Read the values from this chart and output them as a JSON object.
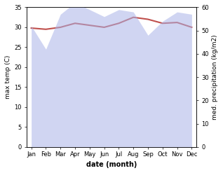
{
  "months": [
    "Jan",
    "Feb",
    "Mar",
    "Apr",
    "May",
    "Jun",
    "Jul",
    "Aug",
    "Sep",
    "Oct",
    "Nov",
    "Dec"
  ],
  "month_indices": [
    0,
    1,
    2,
    3,
    4,
    5,
    6,
    7,
    8,
    9,
    10,
    11
  ],
  "temp": [
    29.8,
    29.5,
    30.0,
    31.0,
    30.5,
    30.0,
    31.0,
    32.5,
    32.0,
    31.0,
    31.2,
    30.0
  ],
  "precip": [
    52,
    42,
    57,
    62,
    59,
    56,
    59,
    58,
    48,
    54,
    58,
    57
  ],
  "temp_color": "#c0504d",
  "precip_color": "#aab4e8",
  "precip_alpha": 0.55,
  "xlabel": "date (month)",
  "ylabel_left": "max temp (C)",
  "ylabel_right": "med. precipitation (kg/m2)",
  "ylim_left": [
    0,
    35
  ],
  "ylim_right": [
    0,
    60
  ],
  "yticks_left": [
    0,
    5,
    10,
    15,
    20,
    25,
    30,
    35
  ],
  "yticks_right": [
    0,
    10,
    20,
    30,
    40,
    50,
    60
  ],
  "bg_color": "#ffffff",
  "temp_linewidth": 1.5
}
